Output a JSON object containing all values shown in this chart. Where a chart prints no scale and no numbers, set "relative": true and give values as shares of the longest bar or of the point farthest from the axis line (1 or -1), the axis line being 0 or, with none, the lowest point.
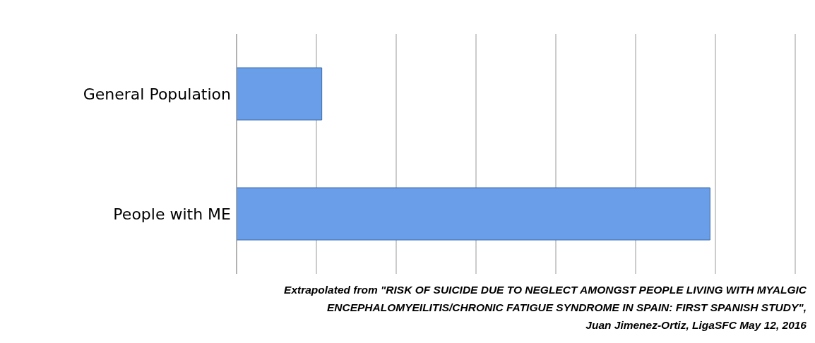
{
  "chart_data": {
    "type": "bar",
    "orientation": "horizontal",
    "relative": true,
    "categories": [
      "General Population",
      "People with ME"
    ],
    "values": [
      0.18,
      1
    ],
    "color": "#6a9ee8",
    "grid": "x",
    "annotations": [
      "Extrapolated from \"RISK OF SUICIDE DUE TO NEGLECT AMONGST PEOPLE LIVING WITH MYALGIC",
      "ENCEPHALOMYEILITIS/CHRONIC FATIGUE SYNDROME IN SPAIN: FIRST SPANISH STUDY\",",
      "Juan Jimenez-Ortiz, LigaSFC May 12, 2016"
    ]
  }
}
